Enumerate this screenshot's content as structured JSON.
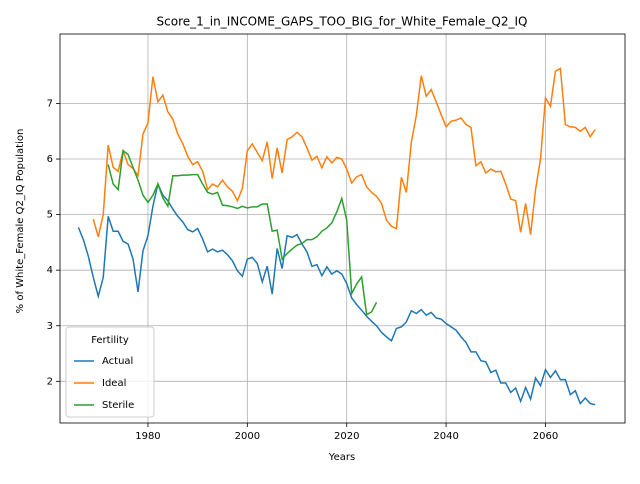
{
  "chart_data": {
    "type": "line",
    "title": "Score_1_in_INCOME_GAPS_TOO_BIG_for_White_Female_Q2_IQ",
    "x_label": "Years",
    "y_label": "% of White_Female Q2_IQ Population",
    "legend_title": "Fertility",
    "legend_loc": "lower left",
    "grid": true,
    "xlim": [
      1962.3,
      2076
    ],
    "ylim": [
      1.25,
      8.25
    ],
    "xticks": [
      1980,
      2000,
      2020,
      2040,
      2060
    ],
    "yticks": [
      2,
      3,
      4,
      5,
      6,
      7
    ],
    "x": [
      1966,
      1967,
      1968,
      1969,
      1970,
      1971,
      1972,
      1973,
      1974,
      1975,
      1976,
      1977,
      1978,
      1979,
      1980,
      1981,
      1982,
      1983,
      1984,
      1985,
      1986,
      1987,
      1988,
      1989,
      1990,
      1991,
      1992,
      1993,
      1994,
      1995,
      1996,
      1997,
      1998,
      1999,
      2000,
      2001,
      2002,
      2003,
      2004,
      2005,
      2006,
      2007,
      2008,
      2009,
      2010,
      2011,
      2012,
      2013,
      2014,
      2015,
      2016,
      2017,
      2018,
      2019,
      2020,
      2021,
      2022,
      2023,
      2024,
      2025,
      2026,
      2027,
      2028,
      2029,
      2030,
      2031,
      2032,
      2033,
      2034,
      2035,
      2036,
      2037,
      2038,
      2039,
      2040,
      2041,
      2042,
      2043,
      2044,
      2045,
      2046,
      2047,
      2048,
      2049,
      2050,
      2051,
      2052,
      2053,
      2054,
      2055,
      2056,
      2057,
      2058,
      2059,
      2060,
      2061,
      2062,
      2063,
      2064,
      2065,
      2066,
      2067,
      2068,
      2069,
      2070
    ],
    "series": [
      {
        "name": "Actual",
        "color": "#1f77b4",
        "values": [
          4.77,
          4.55,
          4.25,
          3.87,
          3.53,
          3.87,
          4.97,
          4.7,
          4.7,
          4.52,
          4.47,
          4.2,
          3.61,
          4.35,
          4.62,
          5.15,
          5.55,
          5.35,
          5.25,
          5.1,
          4.97,
          4.87,
          4.73,
          4.69,
          4.75,
          4.56,
          4.33,
          4.38,
          4.33,
          4.36,
          4.28,
          4.17,
          3.99,
          3.89,
          4.2,
          4.23,
          4.12,
          3.79,
          4.07,
          3.57,
          4.39,
          4.03,
          4.62,
          4.59,
          4.64,
          4.47,
          4.33,
          4.07,
          4.1,
          3.9,
          4.06,
          3.93,
          3.99,
          3.93,
          3.76,
          3.5,
          3.38,
          3.28,
          3.17,
          3.08,
          3.0,
          2.88,
          2.8,
          2.73,
          2.95,
          2.98,
          3.07,
          3.27,
          3.22,
          3.29,
          3.19,
          3.24,
          3.14,
          3.12,
          3.04,
          2.98,
          2.92,
          2.8,
          2.7,
          2.53,
          2.53,
          2.37,
          2.35,
          2.16,
          2.2,
          1.97,
          1.97,
          1.8,
          1.88,
          1.64,
          1.89,
          1.68,
          2.06,
          1.92,
          2.21,
          2.07,
          2.19,
          2.03,
          2.03,
          1.76,
          1.83,
          1.6,
          1.7,
          1.6,
          1.58
        ]
      },
      {
        "name": "Ideal",
        "color": "#ff7f0e",
        "values": [
          null,
          null,
          null,
          4.92,
          4.6,
          5.0,
          6.25,
          5.85,
          5.78,
          6.15,
          5.9,
          5.83,
          5.7,
          6.45,
          6.65,
          7.48,
          7.03,
          7.15,
          6.85,
          6.72,
          6.45,
          6.28,
          6.05,
          5.9,
          5.95,
          5.78,
          5.45,
          5.55,
          5.5,
          5.62,
          5.5,
          5.42,
          5.25,
          5.47,
          6.15,
          6.27,
          6.12,
          5.97,
          6.31,
          5.65,
          6.2,
          5.75,
          6.35,
          6.4,
          6.48,
          6.4,
          6.2,
          5.98,
          6.05,
          5.84,
          6.04,
          5.93,
          6.03,
          6.0,
          5.82,
          5.57,
          5.68,
          5.72,
          5.5,
          5.4,
          5.33,
          5.2,
          4.9,
          4.79,
          4.75,
          5.67,
          5.4,
          6.3,
          6.78,
          7.5,
          7.13,
          7.25,
          7.03,
          6.8,
          6.58,
          6.68,
          6.7,
          6.74,
          6.62,
          6.57,
          5.88,
          5.95,
          5.75,
          5.82,
          5.77,
          5.78,
          5.55,
          5.28,
          5.25,
          4.68,
          5.2,
          4.64,
          5.45,
          6.0,
          7.1,
          6.95,
          7.58,
          7.63,
          6.62,
          6.58,
          6.57,
          6.5,
          6.57,
          6.4,
          6.53
        ]
      },
      {
        "name": "Sterile",
        "color": "#2ca02c",
        "values": [
          null,
          null,
          null,
          null,
          null,
          null,
          5.9,
          5.55,
          5.45,
          6.15,
          6.08,
          5.85,
          5.62,
          5.35,
          5.22,
          5.35,
          5.55,
          5.3,
          5.15,
          5.7,
          5.7,
          5.71,
          5.71,
          5.72,
          5.72,
          5.55,
          5.4,
          5.37,
          5.4,
          5.17,
          5.16,
          5.14,
          5.11,
          5.15,
          5.12,
          5.14,
          5.14,
          5.19,
          5.19,
          4.7,
          4.72,
          4.2,
          4.3,
          4.38,
          4.45,
          4.48,
          4.55,
          4.55,
          4.6,
          4.7,
          4.76,
          4.85,
          5.05,
          5.29,
          4.9,
          3.58,
          3.75,
          3.88,
          3.2,
          3.25,
          3.42,
          null,
          null,
          null,
          null,
          null,
          null,
          null,
          null,
          null,
          null,
          null,
          null,
          null,
          null,
          null,
          null,
          null,
          null,
          null,
          null,
          null,
          null,
          null,
          null,
          null,
          null,
          null,
          null,
          null,
          null,
          null,
          null,
          null,
          null,
          null,
          null,
          null,
          null,
          null,
          null,
          null,
          null,
          null,
          null
        ]
      }
    ]
  }
}
